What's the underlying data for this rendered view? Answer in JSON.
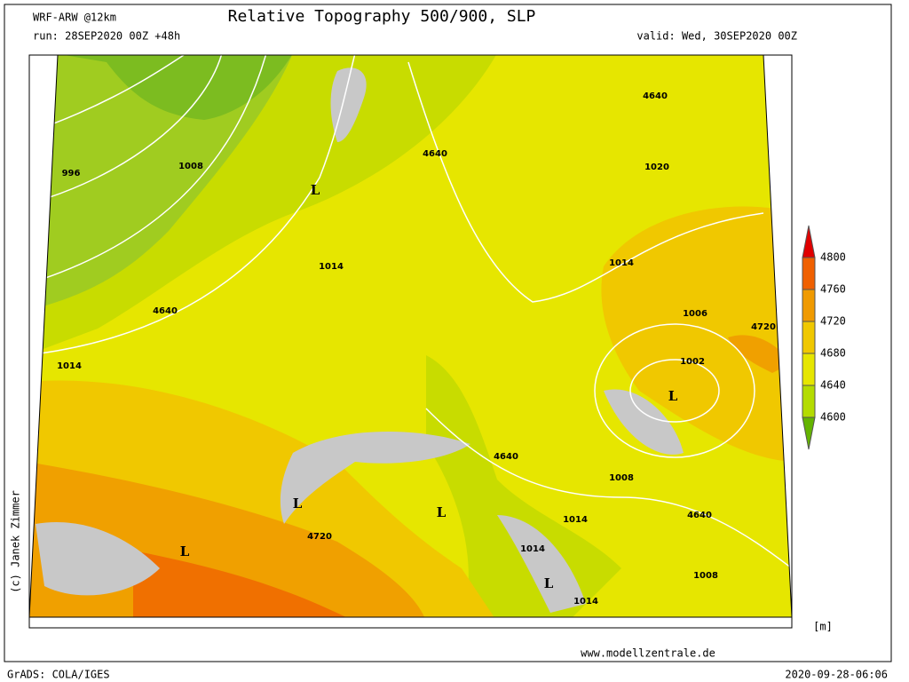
{
  "header": {
    "model": "WRF-ARW @12km",
    "title": "Relative Topography 500/900, SLP",
    "run": "run: 28SEP2020 00Z +48h",
    "valid": "valid: Wed, 30SEP2020 00Z"
  },
  "map": {
    "labels": [
      "996",
      "1008",
      "L",
      "1014",
      "4640",
      "1014",
      "4640",
      "4640",
      "1020",
      "1014",
      "1006",
      "4720",
      "1002",
      "L",
      "4640",
      "1008",
      "L",
      "L",
      "1014",
      "4640",
      "4720",
      "L",
      "1014",
      "L",
      "1008",
      "1014"
    ]
  },
  "legend": {
    "levels": [
      4800,
      4760,
      4720,
      4680,
      4640,
      4600
    ],
    "unit": "[m]"
  },
  "credit": "(c) Janek Zimmer",
  "footer": {
    "website": "www.modellzentrale.de",
    "software": "GrADS: COLA/IGES",
    "timestamp": "2020-09-28-06:06"
  }
}
